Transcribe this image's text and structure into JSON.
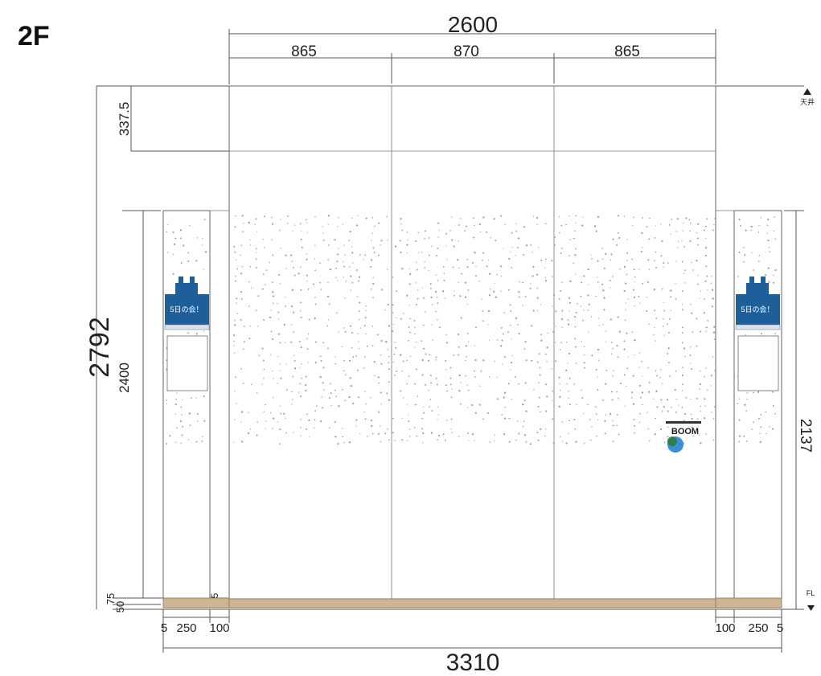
{
  "floor_label": "2F",
  "top_dims": {
    "overall": "2600",
    "segments": [
      "865",
      "870",
      "865"
    ]
  },
  "left_dims": {
    "overall": "2792",
    "upper": "337.5",
    "middle": "2400",
    "bottom_a": "75",
    "bottom_b": "50"
  },
  "right_dims": {
    "height": "2137",
    "ceiling_label": "天井",
    "floor_label": "FL"
  },
  "small_mark": "5",
  "bottom_dims": {
    "overall": "3310",
    "left_segments": [
      "5",
      "250",
      "100"
    ],
    "right_segments": [
      "100",
      "250",
      "5"
    ]
  },
  "signs": {
    "left_text": "5日の会！",
    "right_text": "5日の会！",
    "logo_text": "BOOM"
  },
  "colors": {
    "sign_blue": "#1f5f99",
    "floor_wood": "#cdb592",
    "line": "#555555"
  }
}
